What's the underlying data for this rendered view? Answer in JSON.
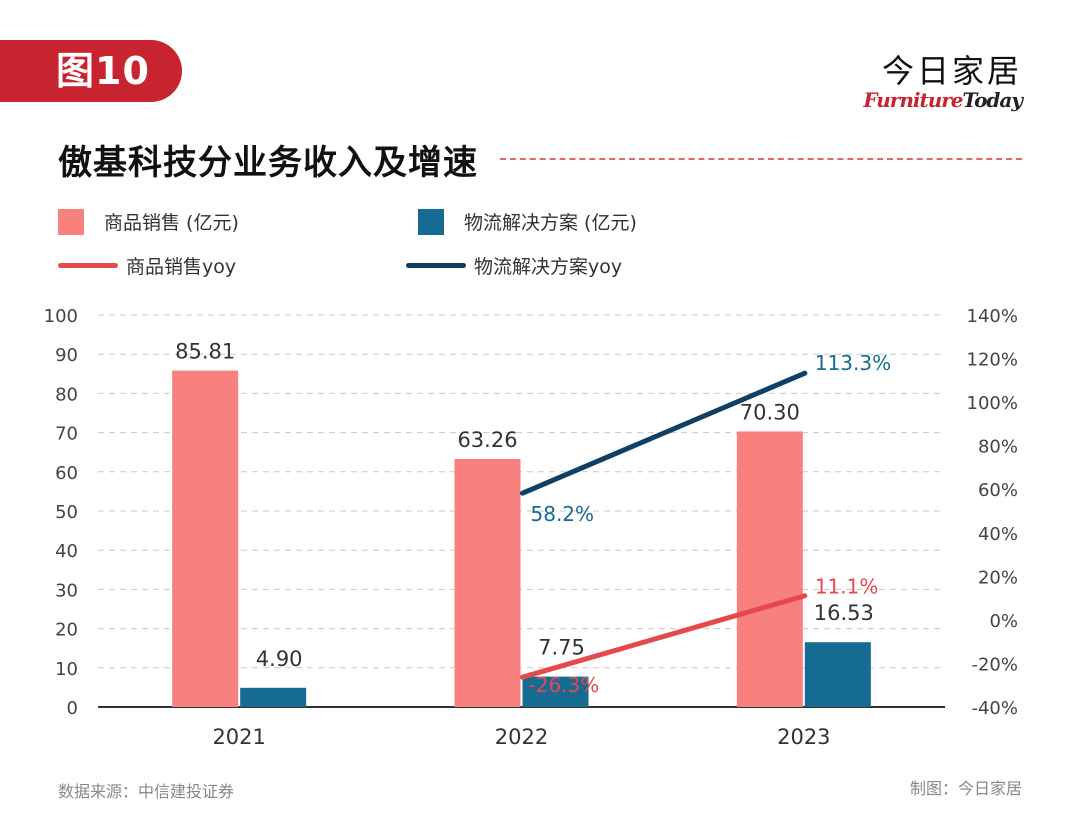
{
  "header": {
    "figure_label": "图10",
    "brand_cn": "今日家居",
    "brand_en_1": "Furniture",
    "brand_en_2": "Today"
  },
  "colors": {
    "sales": "#f8807f",
    "logistics": "#156b92",
    "sales_line": "#e5484d",
    "logistics_line": "#0e3f66",
    "brand_red": "#c8242f"
  },
  "legend": {
    "sales_bar": "商品销售 (亿元)",
    "logistics_bar": "物流解决方案 (亿元)",
    "sales_yoy": "商品销售yoy",
    "logistics_yoy": "物流解决方案yoy"
  },
  "footer": {
    "source": "数据来源：中信建投证券",
    "credit": "制图：今日家居"
  },
  "chart_data": {
    "type": "bar",
    "title": "傲基科技分业务收入及增速",
    "categories": [
      "2021",
      "2022",
      "2023"
    ],
    "series": [
      {
        "name": "商品销售 (亿元)",
        "kind": "bar",
        "axis": "left",
        "values": [
          85.81,
          63.26,
          70.3
        ],
        "labels": [
          "85.81",
          "63.26",
          "70.30"
        ]
      },
      {
        "name": "物流解决方案 (亿元)",
        "kind": "bar",
        "axis": "left",
        "values": [
          4.9,
          7.75,
          16.53
        ],
        "labels": [
          "4.90",
          "7.75",
          "16.53"
        ]
      },
      {
        "name": "商品销售yoy",
        "kind": "line",
        "axis": "right",
        "values": [
          null,
          -26.3,
          11.1
        ],
        "labels": [
          "",
          "-26.3%",
          "11.1%"
        ]
      },
      {
        "name": "物流解决方案yoy",
        "kind": "line",
        "axis": "right",
        "values": [
          null,
          58.2,
          113.3
        ],
        "labels": [
          "",
          "58.2%",
          "113.3%"
        ]
      }
    ],
    "ylim_left": [
      0,
      100
    ],
    "ylim_right": [
      -40,
      140
    ],
    "yticks_left": [
      "0",
      "10",
      "20",
      "30",
      "40",
      "50",
      "60",
      "70",
      "80",
      "90",
      "100"
    ],
    "yticks_right": [
      "-40%",
      "-20%",
      "0%",
      "20%",
      "40%",
      "60%",
      "80%",
      "100%",
      "120%",
      "140%"
    ],
    "grid": true
  }
}
